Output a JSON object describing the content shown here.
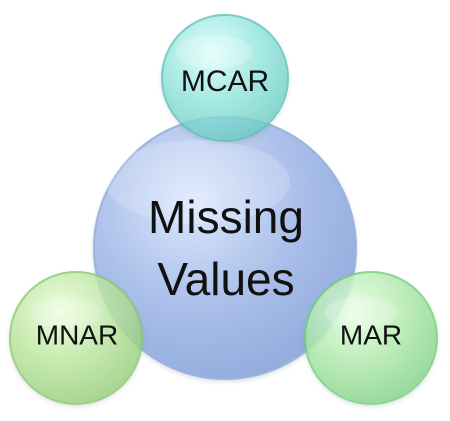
{
  "diagram": {
    "center_label_line1": "Missing",
    "center_label_line2": "Values",
    "nodes": {
      "mcar": "MCAR",
      "mnar": "MNAR",
      "mar": "MAR"
    }
  },
  "colors": {
    "center_fill": "#9eb7e5",
    "mcar_fill": "#7fd9d2",
    "mnar_fill": "#a9d78a",
    "mar_fill": "#98df9c",
    "text": "#111111"
  }
}
